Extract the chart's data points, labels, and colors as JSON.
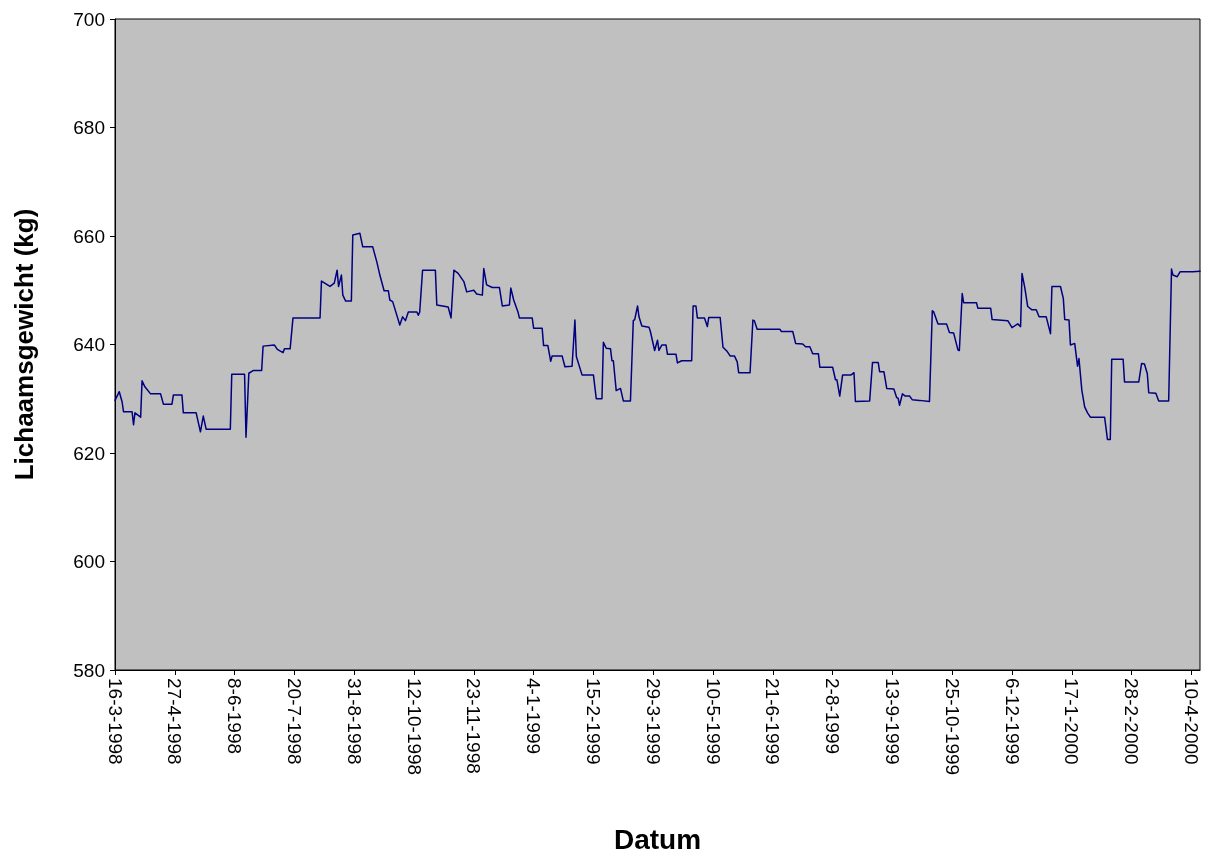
{
  "chart_data": {
    "type": "line",
    "xlabel": "Datum",
    "ylabel": "Lichaamsgewicht (kg)",
    "series": [
      {
        "color": "#000080",
        "x": [
          "1998-03-16",
          "1998-03-19",
          "1998-03-21",
          "1998-03-22",
          "1998-03-28",
          "1998-03-29",
          "1998-03-30",
          "1998-04-03",
          "1998-04-04",
          "1998-04-06",
          "1998-04-10",
          "1998-04-17",
          "1998-04-19",
          "1998-04-25",
          "1998-04-26",
          "1998-05-02",
          "1998-05-03",
          "1998-05-12",
          "1998-05-15",
          "1998-05-17",
          "1998-05-19",
          "1998-06-05",
          "1998-06-06",
          "1998-06-15",
          "1998-06-16",
          "1998-06-18",
          "1998-06-21",
          "1998-06-27",
          "1998-06-28",
          "1998-07-06",
          "1998-07-08",
          "1998-07-12",
          "1998-07-13",
          "1998-07-17",
          "1998-07-19",
          "1998-08-07",
          "1998-08-08",
          "1998-08-14",
          "1998-08-17",
          "1998-08-19",
          "1998-08-20",
          "1998-08-22",
          "1998-08-23",
          "1998-08-25",
          "1998-08-29",
          "1998-08-30",
          "1998-09-04",
          "1998-09-06",
          "1998-09-13",
          "1998-09-16",
          "1998-09-18",
          "1998-09-21",
          "1998-09-24",
          "1998-09-25",
          "1998-09-27",
          "1998-09-29",
          "1998-10-02",
          "1998-10-04",
          "1998-10-06",
          "1998-10-08",
          "1998-10-14",
          "1998-10-15",
          "1998-10-16",
          "1998-10-18",
          "1998-10-27",
          "1998-10-28",
          "1998-11-05",
          "1998-11-07",
          "1998-11-09",
          "1998-11-12",
          "1998-11-16",
          "1998-11-18",
          "1998-11-23",
          "1998-11-25",
          "1998-11-29",
          "1998-11-30",
          "1998-12-02",
          "1998-12-06",
          "1998-12-11",
          "1998-12-13",
          "1998-12-18",
          "1998-12-19",
          "1998-12-21",
          "1998-12-24",
          "1998-12-25",
          "1999-01-03",
          "1999-01-04",
          "1999-01-10",
          "1999-01-11",
          "1999-01-14",
          "1999-01-16",
          "1999-01-17",
          "1999-01-24",
          "1999-01-26",
          "1999-01-31",
          "1999-02-02",
          "1999-02-03",
          "1999-02-07",
          "1999-02-15",
          "1999-02-16",
          "1999-02-17",
          "1999-02-21",
          "1999-02-22",
          "1999-02-24",
          "1999-02-27",
          "1999-02-28",
          "1999-03-01",
          "1999-03-03",
          "1999-03-06",
          "1999-03-08",
          "1999-03-13",
          "1999-03-15",
          "1999-03-16",
          "1999-03-18",
          "1999-03-19",
          "1999-03-21",
          "1999-03-26",
          "1999-03-27",
          "1999-03-30",
          "1999-04-01",
          "1999-04-02",
          "1999-04-04",
          "1999-04-07",
          "1999-04-08",
          "1999-04-14",
          "1999-04-15",
          "1999-04-18",
          "1999-04-25",
          "1999-04-26",
          "1999-04-28",
          "1999-04-29",
          "1999-05-04",
          "1999-05-06",
          "1999-05-07",
          "1999-05-15",
          "1999-05-17",
          "1999-05-20",
          "1999-05-22",
          "1999-05-25",
          "1999-05-27",
          "1999-05-28",
          "1999-06-05",
          "1999-06-07",
          "1999-06-08",
          "1999-06-10",
          "1999-06-26",
          "1999-06-27",
          "1999-07-05",
          "1999-07-07",
          "1999-07-12",
          "1999-07-14",
          "1999-07-17",
          "1999-07-19",
          "1999-07-23",
          "1999-07-24",
          "1999-08-02",
          "1999-08-04",
          "1999-08-05",
          "1999-08-07",
          "1999-08-09",
          "1999-08-15",
          "1999-08-17",
          "1999-08-18",
          "1999-08-28",
          "1999-08-30",
          "1999-09-03",
          "1999-09-04",
          "1999-09-07",
          "1999-09-09",
          "1999-09-14",
          "1999-09-16",
          "1999-09-17",
          "1999-09-18",
          "1999-09-20",
          "1999-09-22",
          "1999-09-25",
          "1999-09-27",
          "1999-10-02",
          "1999-10-09",
          "1999-10-11",
          "1999-10-12",
          "1999-10-15",
          "1999-10-21",
          "1999-10-23",
          "1999-10-26",
          "1999-10-29",
          "1999-10-30",
          "1999-11-01",
          "1999-11-02",
          "1999-11-11",
          "1999-11-12",
          "1999-11-21",
          "1999-11-22",
          "1999-12-03",
          "1999-12-06",
          "1999-12-10",
          "1999-12-12",
          "1999-12-13",
          "1999-12-15",
          "1999-12-17",
          "1999-12-20",
          "1999-12-23",
          "1999-12-25",
          "1999-12-30",
          "2000-01-02",
          "2000-01-03",
          "2000-01-09",
          "2000-01-11",
          "2000-01-12",
          "2000-01-15",
          "2000-01-16",
          "2000-01-19",
          "2000-01-21",
          "2000-01-22",
          "2000-01-24",
          "2000-01-26",
          "2000-01-28",
          "2000-01-30",
          "2000-02-09",
          "2000-02-11",
          "2000-02-13",
          "2000-02-14",
          "2000-02-22",
          "2000-02-23",
          "2000-03-04",
          "2000-03-06",
          "2000-03-08",
          "2000-03-10",
          "2000-03-11",
          "2000-03-16",
          "2000-03-18",
          "2000-03-25",
          "2000-03-27",
          "2000-03-28",
          "2000-03-31",
          "2000-04-02",
          "2000-04-11",
          "2000-04-16"
        ],
        "values": [
          629.7,
          631.3,
          629.4,
          627.6,
          627.6,
          625.2,
          627.4,
          626.6,
          633.3,
          632.2,
          630.9,
          630.9,
          629.0,
          629.0,
          630.7,
          630.7,
          627.4,
          627.4,
          623.9,
          626.8,
          624.4,
          624.4,
          634.5,
          634.5,
          622.9,
          634.7,
          635.2,
          635.2,
          639.7,
          639.9,
          639.1,
          638.5,
          639.2,
          639.2,
          644.9,
          644.9,
          651.7,
          650.7,
          651.3,
          653.7,
          650.7,
          652.8,
          649.1,
          648.0,
          648.0,
          660.2,
          660.5,
          658.0,
          658.0,
          655.1,
          652.8,
          649.9,
          649.9,
          648.2,
          647.9,
          646.2,
          643.6,
          645.1,
          644.4,
          646.0,
          646.0,
          645.4,
          646.0,
          653.7,
          653.7,
          647.3,
          646.9,
          644.9,
          653.7,
          653.1,
          651.6,
          649.7,
          650.0,
          649.3,
          649.1,
          654.0,
          651.0,
          650.5,
          650.5,
          647.1,
          647.3,
          650.4,
          648.2,
          646.0,
          644.9,
          644.9,
          643.0,
          643.0,
          639.8,
          639.8,
          636.9,
          637.9,
          637.9,
          635.9,
          636.0,
          644.5,
          637.8,
          634.4,
          634.4,
          632.2,
          630.0,
          630.0,
          640.4,
          639.3,
          639.2,
          637.0,
          637.0,
          631.5,
          631.9,
          629.6,
          629.6,
          644.4,
          644.6,
          647.1,
          645.1,
          643.4,
          643.2,
          642.4,
          638.9,
          640.8,
          638.9,
          639.9,
          639.9,
          638.2,
          638.2,
          636.6,
          637.0,
          637.0,
          647.1,
          647.1,
          644.9,
          644.9,
          643.3,
          645.0,
          645.0,
          639.5,
          638.7,
          637.9,
          637.9,
          636.8,
          634.8,
          634.8,
          644.5,
          644.4,
          642.8,
          642.8,
          642.4,
          642.4,
          640.2,
          640.1,
          639.6,
          639.6,
          638.3,
          638.3,
          635.8,
          635.8,
          633.5,
          633.5,
          630.5,
          634.4,
          634.4,
          634.8,
          629.5,
          629.6,
          636.7,
          636.7,
          635.0,
          635.0,
          631.9,
          631.8,
          630.2,
          630.1,
          628.8,
          630.9,
          630.5,
          630.5,
          629.8,
          629.7,
          629.5,
          646.2,
          646.0,
          643.8,
          643.8,
          642.2,
          642.1,
          639.0,
          638.9,
          649.4,
          647.7,
          647.7,
          646.7,
          646.7,
          644.6,
          644.4,
          643.1,
          643.8,
          643.3,
          653.1,
          650.4,
          647.0,
          646.4,
          646.4,
          645.1,
          645.1,
          642.0,
          650.7,
          650.7,
          648.5,
          644.6,
          644.5,
          639.9,
          640.2,
          636.0,
          637.4,
          631.6,
          628.5,
          627.4,
          626.6,
          626.6,
          622.5,
          622.5,
          637.3,
          637.3,
          633.1,
          633.1,
          636.5,
          636.4,
          634.6,
          631.1,
          631.0,
          629.6,
          629.6,
          653.9,
          652.8,
          652.5,
          653.4,
          653.4,
          653.5
        ]
      }
    ],
    "xlim": [
      "1998-03-16",
      "2000-04-16"
    ],
    "xticks": [
      {
        "value": "1998-03-16",
        "label": "16-3-1998"
      },
      {
        "value": "1998-04-27",
        "label": "27-4-1998"
      },
      {
        "value": "1998-06-08",
        "label": "8-6-1998"
      },
      {
        "value": "1998-07-20",
        "label": "20-7-1998"
      },
      {
        "value": "1998-08-31",
        "label": "31-8-1998"
      },
      {
        "value": "1998-10-12",
        "label": "12-10-1998"
      },
      {
        "value": "1998-11-23",
        "label": "23-11-1998"
      },
      {
        "value": "1999-01-04",
        "label": "4-1-1999"
      },
      {
        "value": "1999-02-15",
        "label": "15-2-1999"
      },
      {
        "value": "1999-03-29",
        "label": "29-3-1999"
      },
      {
        "value": "1999-05-10",
        "label": "10-5-1999"
      },
      {
        "value": "1999-06-21",
        "label": "21-6-1999"
      },
      {
        "value": "1999-08-02",
        "label": "2-8-1999"
      },
      {
        "value": "1999-09-13",
        "label": "13-9-1999"
      },
      {
        "value": "1999-10-25",
        "label": "25-10-1999"
      },
      {
        "value": "1999-12-06",
        "label": "6-12-1999"
      },
      {
        "value": "2000-01-17",
        "label": "17-1-2000"
      },
      {
        "value": "2000-02-28",
        "label": "28-2-2000"
      },
      {
        "value": "2000-04-10",
        "label": "10-4-2000"
      }
    ],
    "ylim": [
      580,
      700
    ],
    "yticks": [
      580,
      600,
      620,
      640,
      660,
      680,
      700
    ],
    "grid": false,
    "marker": "none",
    "line_style": "solid"
  }
}
